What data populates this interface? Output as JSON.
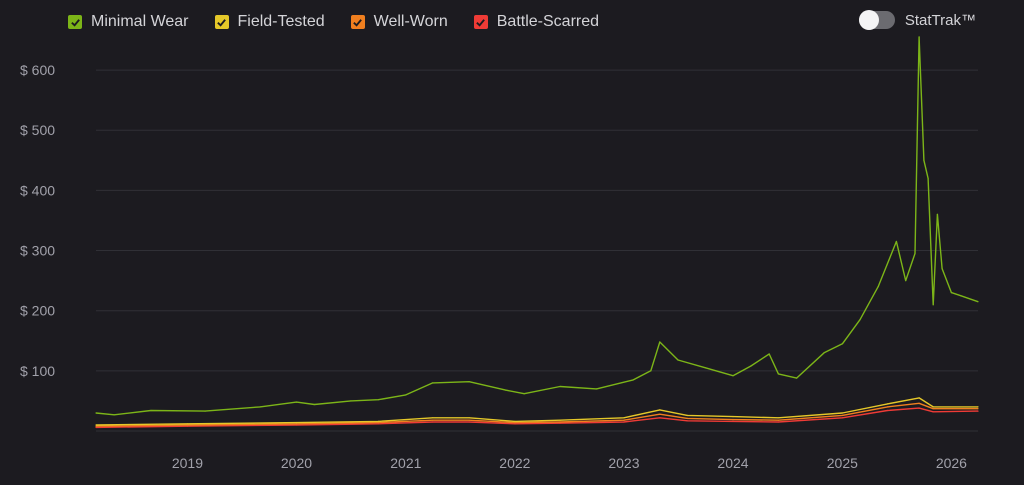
{
  "legend": [
    {
      "label": "Minimal Wear",
      "color": "#7cb518"
    },
    {
      "label": "Field-Tested",
      "color": "#e5c829"
    },
    {
      "label": "Well-Worn",
      "color": "#f07f1f"
    },
    {
      "label": "Battle-Scarred",
      "color": "#ef3b36"
    }
  ],
  "toggle": {
    "label": "StatTrak™",
    "on": false
  },
  "chart_data": {
    "type": "line",
    "x_ticks": [
      "2019",
      "2020",
      "2021",
      "2022",
      "2023",
      "2024",
      "2025",
      "2026"
    ],
    "y_ticks": [
      "$ 100",
      "$ 200",
      "$ 300",
      "$ 400",
      "$ 500",
      "$ 600"
    ],
    "ylim": [
      0,
      650
    ],
    "xlim": [
      "2018-03-01",
      "2026-03-31"
    ],
    "grid": true,
    "legend_position": "top-left",
    "series": [
      {
        "name": "Minimal Wear",
        "color": "#7cb518",
        "points": [
          [
            "2018-03-01",
            30
          ],
          [
            "2018-05-01",
            27
          ],
          [
            "2018-09-01",
            34
          ],
          [
            "2019-03-01",
            33
          ],
          [
            "2019-09-01",
            40
          ],
          [
            "2020-01-01",
            48
          ],
          [
            "2020-03-01",
            44
          ],
          [
            "2020-07-01",
            50
          ],
          [
            "2020-10-01",
            52
          ],
          [
            "2021-01-01",
            60
          ],
          [
            "2021-04-01",
            80
          ],
          [
            "2021-08-01",
            82
          ],
          [
            "2021-12-01",
            68
          ],
          [
            "2022-02-01",
            62
          ],
          [
            "2022-06-01",
            74
          ],
          [
            "2022-10-01",
            70
          ],
          [
            "2023-02-01",
            85
          ],
          [
            "2023-04-01",
            100
          ],
          [
            "2023-05-01",
            148
          ],
          [
            "2023-07-01",
            118
          ],
          [
            "2023-10-01",
            105
          ],
          [
            "2024-01-01",
            92
          ],
          [
            "2024-03-01",
            108
          ],
          [
            "2024-05-01",
            128
          ],
          [
            "2024-06-01",
            95
          ],
          [
            "2024-08-01",
            88
          ],
          [
            "2024-11-01",
            130
          ],
          [
            "2025-01-01",
            145
          ],
          [
            "2025-03-01",
            185
          ],
          [
            "2025-05-01",
            240
          ],
          [
            "2025-07-01",
            315
          ],
          [
            "2025-08-01",
            250
          ],
          [
            "2025-09-01",
            295
          ],
          [
            "2025-09-15",
            655
          ],
          [
            "2025-10-01",
            450
          ],
          [
            "2025-10-15",
            420
          ],
          [
            "2025-11-01",
            210
          ],
          [
            "2025-11-15",
            360
          ],
          [
            "2025-12-01",
            270
          ],
          [
            "2026-01-01",
            230
          ],
          [
            "2026-02-01",
            225
          ],
          [
            "2026-03-31",
            215
          ]
        ]
      },
      {
        "name": "Field-Tested",
        "color": "#e5c829",
        "points": [
          [
            "2018-03-01",
            10
          ],
          [
            "2019-01-01",
            12
          ],
          [
            "2020-01-01",
            14
          ],
          [
            "2020-10-01",
            16
          ],
          [
            "2021-04-01",
            22
          ],
          [
            "2021-08-01",
            22
          ],
          [
            "2022-01-01",
            16
          ],
          [
            "2022-06-01",
            18
          ],
          [
            "2023-01-01",
            22
          ],
          [
            "2023-05-01",
            35
          ],
          [
            "2023-08-01",
            26
          ],
          [
            "2024-01-01",
            24
          ],
          [
            "2024-06-01",
            22
          ],
          [
            "2025-01-01",
            30
          ],
          [
            "2025-06-01",
            45
          ],
          [
            "2025-09-15",
            55
          ],
          [
            "2025-11-01",
            40
          ],
          [
            "2026-03-31",
            40
          ]
        ]
      },
      {
        "name": "Well-Worn",
        "color": "#f07f1f",
        "points": [
          [
            "2018-03-01",
            8
          ],
          [
            "2019-01-01",
            10
          ],
          [
            "2020-01-01",
            12
          ],
          [
            "2020-10-01",
            14
          ],
          [
            "2021-04-01",
            18
          ],
          [
            "2021-08-01",
            18
          ],
          [
            "2022-01-01",
            14
          ],
          [
            "2022-06-01",
            15
          ],
          [
            "2023-01-01",
            18
          ],
          [
            "2023-05-01",
            28
          ],
          [
            "2023-08-01",
            21
          ],
          [
            "2024-01-01",
            19
          ],
          [
            "2024-06-01",
            18
          ],
          [
            "2025-01-01",
            26
          ],
          [
            "2025-06-01",
            40
          ],
          [
            "2025-09-15",
            46
          ],
          [
            "2025-11-01",
            37
          ],
          [
            "2026-03-31",
            37
          ]
        ]
      },
      {
        "name": "Battle-Scarred",
        "color": "#ef3b36",
        "points": [
          [
            "2018-03-01",
            6
          ],
          [
            "2019-01-01",
            8
          ],
          [
            "2020-01-01",
            10
          ],
          [
            "2020-10-01",
            12
          ],
          [
            "2021-04-01",
            15
          ],
          [
            "2021-08-01",
            15
          ],
          [
            "2022-01-01",
            12
          ],
          [
            "2022-06-01",
            13
          ],
          [
            "2023-01-01",
            15
          ],
          [
            "2023-05-01",
            22
          ],
          [
            "2023-08-01",
            17
          ],
          [
            "2024-01-01",
            16
          ],
          [
            "2024-06-01",
            15
          ],
          [
            "2025-01-01",
            22
          ],
          [
            "2025-06-01",
            34
          ],
          [
            "2025-09-15",
            38
          ],
          [
            "2025-11-01",
            32
          ],
          [
            "2026-03-31",
            33
          ]
        ]
      }
    ]
  }
}
